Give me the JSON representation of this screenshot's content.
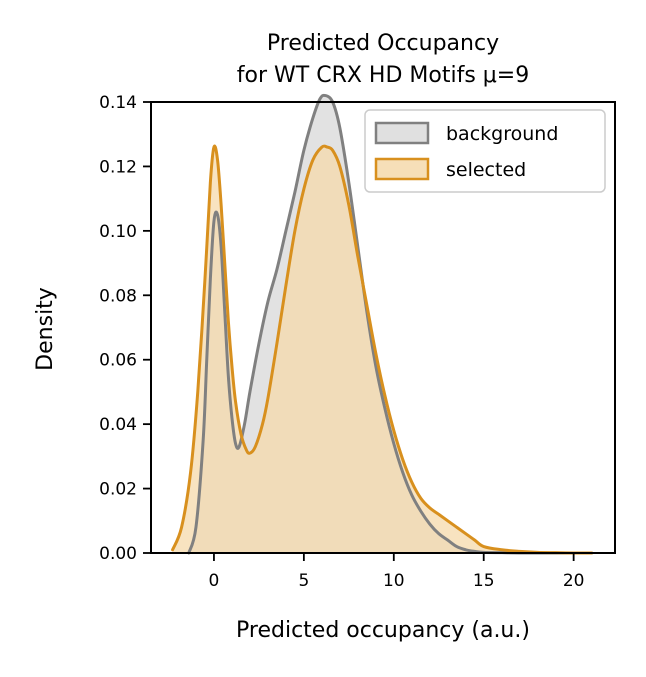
{
  "chart_data": {
    "type": "area",
    "title": [
      "Predicted Occupancy",
      "for WT CRX HD Motifs μ=9"
    ],
    "xlabel": "Predicted occupancy (a.u.)",
    "ylabel": "Density",
    "xlim": [
      -3.5,
      22.3
    ],
    "ylim": [
      0,
      0.14
    ],
    "xticks": [
      0,
      5,
      10,
      15,
      20
    ],
    "xtick_labels": [
      "0",
      "5",
      "10",
      "15",
      "20"
    ],
    "yticks": [
      0,
      0.02,
      0.04,
      0.06,
      0.08,
      0.1,
      0.12,
      0.14
    ],
    "ytick_labels": [
      "0.00",
      "0.02",
      "0.04",
      "0.06",
      "0.08",
      "0.10",
      "0.12",
      "0.14"
    ],
    "grid": false,
    "legend_position": "top-right",
    "series": [
      {
        "name": "background",
        "color": "#808080",
        "fill": "#e0e0e0",
        "x": [
          -1.4,
          -1.0,
          -0.6,
          -0.4,
          -0.2,
          0.0,
          0.2,
          0.4,
          0.6,
          0.8,
          1.0,
          1.2,
          1.4,
          1.7,
          2.0,
          2.5,
          3.0,
          3.5,
          4.0,
          4.5,
          5.0,
          5.5,
          5.9,
          6.2,
          6.6,
          7.0,
          7.5,
          8.0,
          8.5,
          9.0,
          9.5,
          10.0,
          10.5,
          11.0,
          11.5,
          12.0,
          12.5,
          13.0,
          13.5,
          14.0,
          14.5,
          15.0,
          16.0,
          17.0,
          18.0,
          19.0,
          20.0,
          21.0
        ],
        "y": [
          0.0,
          0.008,
          0.035,
          0.06,
          0.085,
          0.103,
          0.105,
          0.095,
          0.075,
          0.055,
          0.042,
          0.034,
          0.033,
          0.04,
          0.05,
          0.065,
          0.078,
          0.088,
          0.1,
          0.112,
          0.125,
          0.135,
          0.141,
          0.142,
          0.14,
          0.132,
          0.115,
          0.095,
          0.075,
          0.058,
          0.045,
          0.034,
          0.025,
          0.018,
          0.013,
          0.009,
          0.006,
          0.004,
          0.002,
          0.001,
          0.0005,
          0.0002,
          0.0001,
          0.0,
          0.0,
          0.0,
          0.0,
          0.0
        ]
      },
      {
        "name": "selected",
        "color": "#d8901e",
        "fill": "#f5d9ab",
        "x": [
          -2.3,
          -1.8,
          -1.3,
          -0.9,
          -0.5,
          -0.2,
          0.0,
          0.2,
          0.4,
          0.6,
          0.8,
          1.0,
          1.2,
          1.5,
          1.8,
          2.0,
          2.3,
          2.7,
          3.0,
          3.5,
          4.0,
          4.5,
          5.0,
          5.5,
          6.0,
          6.3,
          6.6,
          7.0,
          7.5,
          8.0,
          8.5,
          9.0,
          9.5,
          10.0,
          10.5,
          11.0,
          11.5,
          12.0,
          12.5,
          13.0,
          13.5,
          14.0,
          14.5,
          15.0,
          16.0,
          17.0,
          18.0,
          19.0,
          20.0,
          21.0
        ],
        "y": [
          0.001,
          0.008,
          0.025,
          0.05,
          0.085,
          0.115,
          0.126,
          0.122,
          0.108,
          0.09,
          0.072,
          0.058,
          0.047,
          0.037,
          0.032,
          0.031,
          0.033,
          0.04,
          0.048,
          0.065,
          0.083,
          0.1,
          0.113,
          0.122,
          0.126,
          0.126,
          0.125,
          0.12,
          0.108,
          0.092,
          0.077,
          0.062,
          0.049,
          0.038,
          0.029,
          0.022,
          0.017,
          0.014,
          0.012,
          0.01,
          0.008,
          0.006,
          0.004,
          0.002,
          0.001,
          0.0005,
          0.0002,
          0.0001,
          0.0,
          0.0
        ]
      }
    ]
  }
}
